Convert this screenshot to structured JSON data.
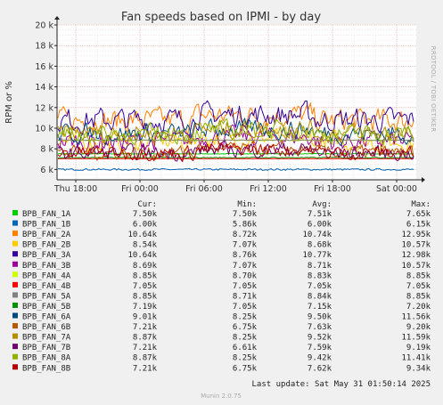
{
  "chart_data": {
    "type": "line",
    "title": "Fan speeds based on IPMI - by day",
    "ylabel": "RPM or %",
    "xlabel": "",
    "ylim": [
      5000,
      20000
    ],
    "y_ticks": [
      {
        "value": 6000,
        "label": "6 k"
      },
      {
        "value": 8000,
        "label": "8 k"
      },
      {
        "value": 10000,
        "label": "10 k"
      },
      {
        "value": 12000,
        "label": "12 k"
      },
      {
        "value": 14000,
        "label": "14 k"
      },
      {
        "value": 16000,
        "label": "16 k"
      },
      {
        "value": 18000,
        "label": "18 k"
      },
      {
        "value": 20000,
        "label": "20 k"
      }
    ],
    "x_ticks": [
      "Thu 18:00",
      "Fri 00:00",
      "Fri 06:00",
      "Fri 12:00",
      "Fri 18:00",
      "Sat 00:00"
    ],
    "grid": true,
    "side_label": "RRDTOOL / TOBI OETIKER",
    "footer": "Munin 2.0.75",
    "last_update": "Last update: Sat May 31 01:50:14 2025",
    "legend_headers": {
      "cur": "Cur:",
      "min": "Min:",
      "avg": "Avg:",
      "max": "Max:"
    },
    "series": [
      {
        "name": "BPB_FAN_1A",
        "color": "#00cc00",
        "cur": "7.50k",
        "min": "7.50k",
        "avg": "7.51k",
        "max": "7.65k"
      },
      {
        "name": "BPB_FAN_1B",
        "color": "#0066b3",
        "cur": "6.00k",
        "min": "5.86k",
        "avg": "6.00k",
        "max": "6.15k"
      },
      {
        "name": "BPB_FAN_2A",
        "color": "#ff8000",
        "cur": "10.64k",
        "min": "8.72k",
        "avg": "10.74k",
        "max": "12.95k"
      },
      {
        "name": "BPB_FAN_2B",
        "color": "#ffcc00",
        "cur": "8.54k",
        "min": "7.07k",
        "avg": "8.68k",
        "max": "10.57k"
      },
      {
        "name": "BPB_FAN_3A",
        "color": "#330099",
        "cur": "10.64k",
        "min": "8.76k",
        "avg": "10.77k",
        "max": "12.98k"
      },
      {
        "name": "BPB_FAN_3B",
        "color": "#990099",
        "cur": "8.69k",
        "min": "7.07k",
        "avg": "8.71k",
        "max": "10.57k"
      },
      {
        "name": "BPB_FAN_4A",
        "color": "#ccff00",
        "cur": "8.85k",
        "min": "8.70k",
        "avg": "8.83k",
        "max": "8.85k"
      },
      {
        "name": "BPB_FAN_4B",
        "color": "#ff0000",
        "cur": "7.05k",
        "min": "7.05k",
        "avg": "7.05k",
        "max": "7.05k"
      },
      {
        "name": "BPB_FAN_5A",
        "color": "#808080",
        "cur": "8.85k",
        "min": "8.71k",
        "avg": "8.84k",
        "max": "8.85k"
      },
      {
        "name": "BPB_FAN_5B",
        "color": "#008f00",
        "cur": "7.19k",
        "min": "7.05k",
        "avg": "7.15k",
        "max": "7.20k"
      },
      {
        "name": "BPB_FAN_6A",
        "color": "#00487d",
        "cur": "9.01k",
        "min": "8.25k",
        "avg": "9.50k",
        "max": "11.56k"
      },
      {
        "name": "BPB_FAN_6B",
        "color": "#b35a00",
        "cur": "7.21k",
        "min": "6.75k",
        "avg": "7.63k",
        "max": "9.20k"
      },
      {
        "name": "BPB_FAN_7A",
        "color": "#b38f00",
        "cur": "8.87k",
        "min": "8.25k",
        "avg": "9.52k",
        "max": "11.59k"
      },
      {
        "name": "BPB_FAN_7B",
        "color": "#6b006b",
        "cur": "7.21k",
        "min": "6.61k",
        "avg": "7.59k",
        "max": "9.19k"
      },
      {
        "name": "BPB_FAN_8A",
        "color": "#8fb300",
        "cur": "8.87k",
        "min": "8.25k",
        "avg": "9.42k",
        "max": "11.41k"
      },
      {
        "name": "BPB_FAN_8B",
        "color": "#b30000",
        "cur": "7.21k",
        "min": "6.75k",
        "avg": "7.62k",
        "max": "9.34k"
      }
    ]
  }
}
